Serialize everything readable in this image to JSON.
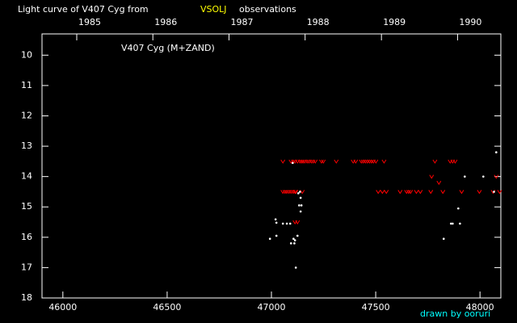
{
  "chart_data": {
    "type": "scatter",
    "title_parts": [
      "Light curve of V407 Cyg from",
      "VSOLJ",
      "observations"
    ],
    "title_colors": [
      "#ffffff",
      "#ffff00",
      "#ffffff"
    ],
    "annotation": "V407 Cyg (M+ZAND)",
    "credit": "drawn by ooruri",
    "credit_color": "#00ffff",
    "xlim": [
      45900,
      48100
    ],
    "xticks": [
      46000,
      46500,
      47000,
      47500,
      48000
    ],
    "x2ticks": [
      {
        "value": 46066.5,
        "label": "1985"
      },
      {
        "value": 46431.5,
        "label": "1986"
      },
      {
        "value": 46796.5,
        "label": "1987"
      },
      {
        "value": 47161.5,
        "label": "1988"
      },
      {
        "value": 47527.5,
        "label": "1989"
      },
      {
        "value": 47892.5,
        "label": "1990"
      }
    ],
    "ylim": [
      18,
      9.3
    ],
    "yticks": [
      10,
      11,
      12,
      13,
      14,
      15,
      16,
      17,
      18
    ],
    "series": [
      {
        "color": "#ff0000",
        "marker": "v",
        "x": [
          47055,
          47094,
          47105,
          47113,
          47125,
          47137,
          47145,
          47152,
          47160,
          47171,
          47180,
          47191,
          47200,
          47210,
          47240,
          47249,
          47311,
          47392,
          47404,
          47431,
          47440,
          47450,
          47460,
          47470,
          47480,
          47489,
          47501,
          47540,
          47784,
          47857,
          47869,
          47881,
          47055,
          47065,
          47074,
          47084,
          47094,
          47104,
          47113,
          47117,
          47148,
          47512,
          47532,
          47551,
          47617,
          47648,
          47658,
          47667,
          47695,
          47714,
          47764,
          47822,
          47912,
          47997,
          48063,
          48094,
          47768,
          48078,
          47803,
          47113,
          47125
        ],
        "values": [
          13.5,
          13.5,
          13.5,
          13.5,
          13.5,
          13.5,
          13.5,
          13.5,
          13.5,
          13.5,
          13.5,
          13.5,
          13.5,
          13.5,
          13.5,
          13.5,
          13.5,
          13.5,
          13.5,
          13.5,
          13.5,
          13.5,
          13.5,
          13.5,
          13.5,
          13.5,
          13.5,
          13.5,
          13.5,
          13.5,
          13.5,
          13.5,
          14.5,
          14.5,
          14.5,
          14.5,
          14.5,
          14.5,
          14.5,
          14.5,
          14.5,
          14.5,
          14.5,
          14.5,
          14.5,
          14.5,
          14.5,
          14.5,
          14.5,
          14.5,
          14.5,
          14.5,
          14.5,
          14.5,
          14.5,
          14.5,
          14.0,
          14.0,
          14.2,
          15.5,
          15.5
        ]
      },
      {
        "color": "#ffffff",
        "marker": "dot",
        "x": [
          46993,
          47020,
          47024,
          47024,
          47055,
          47074,
          47090,
          47102,
          47094,
          47106,
          47110,
          47113,
          47117,
          47125,
          47129,
          47137,
          47140,
          47133,
          47144,
          47140,
          47826,
          47861,
          47869,
          47896,
          47904,
          47927,
          48016,
          48067,
          48078
        ],
        "values": [
          16.05,
          15.41,
          15.52,
          15.95,
          15.55,
          15.55,
          15.55,
          13.55,
          16.2,
          16.05,
          16.2,
          16.1,
          17.0,
          15.95,
          14.55,
          14.5,
          14.7,
          14.95,
          14.95,
          15.15,
          16.05,
          15.55,
          15.55,
          15.05,
          15.55,
          14.0,
          14.0,
          14.5,
          13.2
        ]
      }
    ]
  }
}
